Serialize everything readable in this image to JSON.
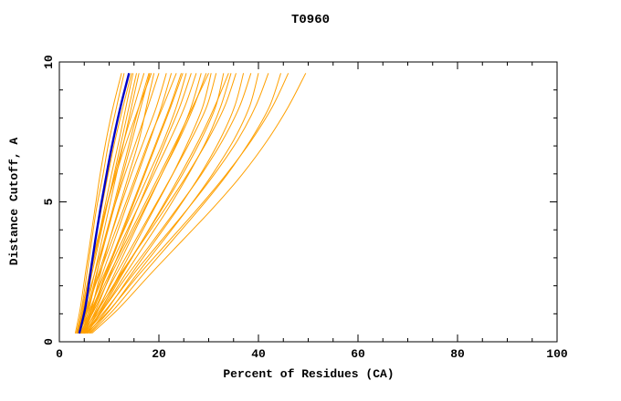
{
  "title": "T0960",
  "chart_data": {
    "type": "line",
    "title": "T0960",
    "xlabel": "Percent of Residues (CA)",
    "ylabel": "Distance Cutoff, A",
    "xlim": [
      0,
      100
    ],
    "ylim": [
      0,
      10
    ],
    "x_ticks": [
      0,
      20,
      40,
      60,
      80,
      100
    ],
    "y_ticks": [
      0,
      5,
      10
    ],
    "x_minor_step": 5,
    "y_minor_step": 1,
    "grid": false,
    "legend": "none",
    "orange_color": "#FFA000",
    "blue_color": "#0000C8",
    "axis_color": "#000000",
    "y_samples": [
      0.3,
      1.2,
      2.4,
      3.6,
      4.8,
      6.0,
      7.2,
      8.4,
      9.6
    ],
    "blue_series": [
      4,
      5.2,
      6.2,
      7.2,
      8.3,
      9.5,
      10.8,
      12.3,
      14
    ],
    "orange_series": [
      [
        3.5,
        4.5,
        5.5,
        6.5,
        7.5,
        8.8,
        10,
        11.5,
        13
      ],
      [
        4,
        5,
        6,
        7.2,
        8.5,
        9.8,
        11.2,
        12.8,
        14.5
      ],
      [
        3.8,
        5,
        6.5,
        8,
        9.5,
        11,
        12.5,
        14,
        15.5
      ],
      [
        4.2,
        5.5,
        7,
        8.5,
        10,
        11.5,
        13,
        14.5,
        16
      ],
      [
        3.6,
        4.8,
        6.2,
        7.8,
        9.4,
        11.2,
        13,
        15,
        17
      ],
      [
        4.5,
        6,
        7.5,
        9,
        10.8,
        12.5,
        14.2,
        16,
        18
      ],
      [
        3.4,
        4.6,
        6,
        7.6,
        9.4,
        11.4,
        13.6,
        16,
        18.5
      ],
      [
        4.8,
        6.5,
        8.2,
        10,
        12,
        14,
        16,
        17.5,
        19
      ],
      [
        3.5,
        5,
        7,
        9,
        11,
        13.2,
        15.5,
        17.8,
        20
      ],
      [
        4,
        5.8,
        7.8,
        10,
        12.2,
        14.5,
        17,
        19.5,
        21.5
      ],
      [
        4.4,
        6.4,
        8.6,
        11,
        13.4,
        15.8,
        18.2,
        20.5,
        22.5
      ],
      [
        3.8,
        5.6,
        8,
        10.5,
        13,
        15.5,
        18,
        20.8,
        23.5
      ],
      [
        4.6,
        6.8,
        9.2,
        11.8,
        14.4,
        17,
        19.6,
        22.2,
        24.5
      ],
      [
        4,
        6.2,
        9,
        12,
        15,
        18,
        21,
        23.5,
        25.5
      ],
      [
        5,
        7.5,
        10.2,
        13,
        15.8,
        18.6,
        21.4,
        24.2,
        26.5
      ],
      [
        4.2,
        6.6,
        9.5,
        12.6,
        15.8,
        19,
        22.2,
        25.2,
        27.5
      ],
      [
        5.2,
        8,
        11,
        14.2,
        17.4,
        20.6,
        23.8,
        26.5,
        28.5
      ],
      [
        4.5,
        7.2,
        10.4,
        13.8,
        17.2,
        20.6,
        24,
        27,
        29.5
      ],
      [
        5.5,
        8.6,
        12,
        15.6,
        19.2,
        22.8,
        26,
        28.8,
        30.5
      ],
      [
        4.8,
        7.8,
        11.4,
        15.2,
        19,
        22.8,
        26.4,
        29.6,
        31.5
      ],
      [
        5,
        8.4,
        12.4,
        16.6,
        20.8,
        24.8,
        28.4,
        31.4,
        33
      ],
      [
        5.4,
        9,
        13.2,
        17.6,
        22,
        26,
        29.6,
        32.4,
        34.5
      ],
      [
        4.6,
        8,
        12.2,
        16.8,
        21.4,
        25.8,
        29.8,
        33.2,
        35.5
      ],
      [
        5.8,
        9.8,
        14.4,
        19.2,
        24,
        28.4,
        32.2,
        35.2,
        37
      ],
      [
        5,
        9,
        13.8,
        18.8,
        23.8,
        28.6,
        32.8,
        36.2,
        38.5
      ],
      [
        6,
        10.5,
        15.5,
        20.8,
        26,
        30.8,
        35,
        38.2,
        40
      ],
      [
        5.2,
        9.6,
        14.8,
        20.4,
        26,
        31.2,
        35.8,
        39.4,
        42
      ],
      [
        6.2,
        11.2,
        16.8,
        22.6,
        28.4,
        33.8,
        38.4,
        42.2,
        44.5
      ],
      [
        5.5,
        10.4,
        16,
        22,
        28,
        33.6,
        38.6,
        42.8,
        46
      ],
      [
        6.5,
        12,
        18.2,
        24.6,
        31,
        36.8,
        41.8,
        46,
        49.5
      ],
      [
        3.2,
        4.2,
        5.2,
        6.2,
        7.2,
        8.2,
        9.4,
        10.8,
        12.5
      ],
      [
        3.6,
        4.9,
        6.3,
        7.7,
        9.1,
        10.5,
        12,
        13.4,
        14.8
      ],
      [
        4.1,
        5.7,
        7.4,
        9.2,
        11,
        12.8,
        14.6,
        16.4,
        18.2
      ],
      [
        4.9,
        7,
        9.4,
        12,
        14.6,
        17.2,
        19.8,
        22.4,
        24.8
      ],
      [
        5.6,
        8.8,
        12.6,
        16.6,
        20.6,
        24.4,
        28,
        31.2,
        34
      ],
      [
        4.3,
        6.9,
        10,
        13.4,
        16.8,
        20.2,
        23.6,
        26.8,
        30
      ]
    ]
  }
}
